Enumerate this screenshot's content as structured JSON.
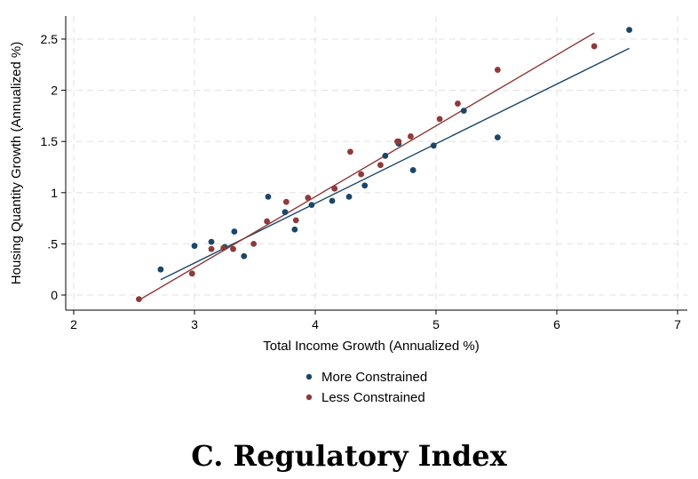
{
  "caption": "C. Regulatory Index",
  "chart_data": {
    "type": "scatter",
    "xlabel": "Total Income Growth (Annualized %)",
    "ylabel": "Housing Quantity Growth (Annualized %)",
    "xlim": [
      2,
      7
    ],
    "ylim": [
      -0.15,
      2.75
    ],
    "xticks": [
      2,
      3,
      4,
      5,
      6,
      7
    ],
    "xtick_labels": [
      "2",
      "3",
      "4",
      "5",
      "6",
      "7"
    ],
    "yticks": [
      0,
      0.5,
      1,
      1.5,
      2,
      2.5
    ],
    "ytick_labels": [
      "0",
      ".5",
      "1",
      "1.5",
      "2",
      "2.5"
    ],
    "grid": true,
    "legend_position": "bottom-center",
    "series": [
      {
        "name": "More Constrained",
        "color": "#1b4668",
        "x": [
          2.72,
          3.0,
          3.14,
          3.25,
          3.33,
          3.41,
          3.61,
          3.75,
          3.83,
          3.97,
          4.14,
          4.28,
          4.41,
          4.58,
          4.69,
          4.81,
          4.98,
          5.23,
          5.51,
          6.6
        ],
        "y": [
          0.25,
          0.48,
          0.52,
          0.47,
          0.62,
          0.38,
          0.96,
          0.81,
          0.64,
          0.88,
          0.92,
          0.96,
          1.07,
          1.36,
          1.48,
          1.22,
          1.46,
          1.8,
          1.54,
          2.59
        ],
        "fit": {
          "x": [
            2.72,
            6.6
          ],
          "y": [
            0.15,
            2.41
          ]
        }
      },
      {
        "name": "Less Constrained",
        "color": "#8e3a3a",
        "x": [
          2.54,
          2.98,
          3.14,
          3.24,
          3.32,
          3.49,
          3.6,
          3.76,
          3.84,
          3.94,
          4.16,
          4.29,
          4.38,
          4.54,
          4.68,
          4.69,
          4.79,
          5.03,
          5.18,
          5.51,
          6.31
        ],
        "y": [
          -0.04,
          0.21,
          0.45,
          0.46,
          0.45,
          0.5,
          0.72,
          0.91,
          0.73,
          0.95,
          1.04,
          1.4,
          1.18,
          1.27,
          1.5,
          1.5,
          1.55,
          1.72,
          1.87,
          2.2,
          2.43
        ],
        "fit": {
          "x": [
            2.54,
            6.31
          ],
          "y": [
            -0.05,
            2.56
          ]
        }
      }
    ]
  }
}
